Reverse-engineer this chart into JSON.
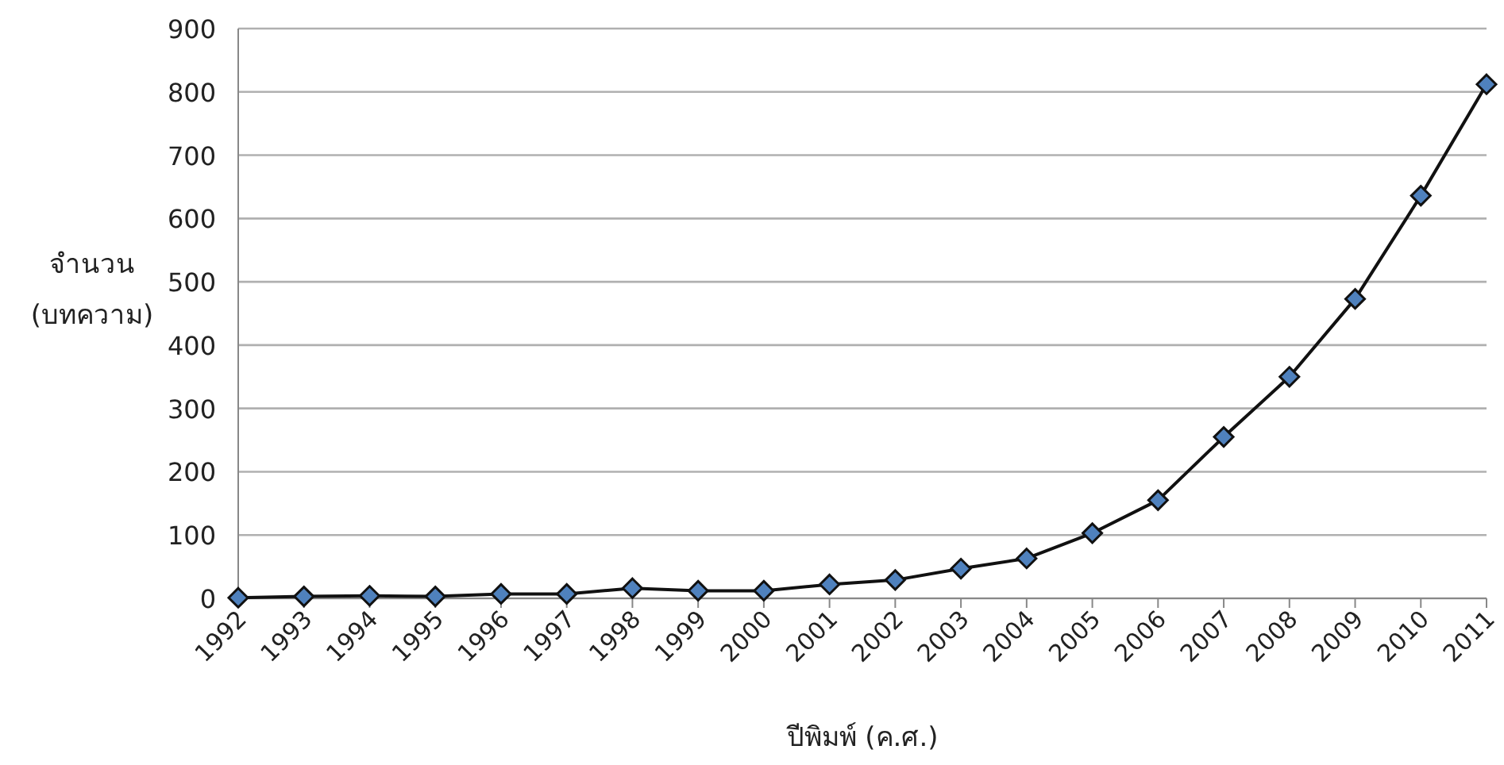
{
  "chart_data": {
    "type": "line",
    "xlabel": "ปีพิมพ์ (ค.ศ.)",
    "ylabel": "จำนวน (บทความ)",
    "categories": [
      "1992",
      "1993",
      "1994",
      "1995",
      "1996",
      "1997",
      "1998",
      "1999",
      "2000",
      "2001",
      "2002",
      "2003",
      "2004",
      "2005",
      "2006",
      "2007",
      "2008",
      "2009",
      "2010",
      "2011"
    ],
    "series": [
      {
        "color": "#4f81bd",
        "values": [
          1,
          3,
          4,
          3,
          7,
          7,
          16,
          12,
          12,
          22,
          29,
          47,
          63,
          103,
          155,
          255,
          350,
          473,
          636,
          812
        ]
      }
    ],
    "ylim": [
      0,
      900
    ],
    "yticks": [
      0,
      100,
      200,
      300,
      400,
      500,
      600,
      700,
      800,
      900
    ],
    "grid": "y",
    "marker": "diamond",
    "line_style": "solid"
  }
}
